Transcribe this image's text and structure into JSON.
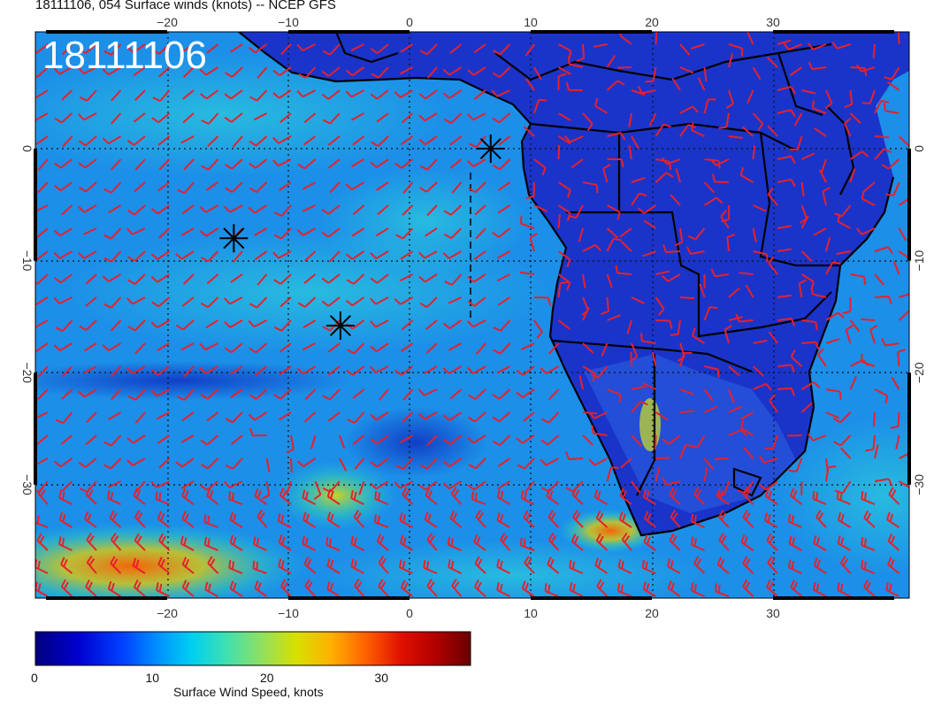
{
  "title": "18111106, 054 Surface winds (knots) -- NCEP GFS",
  "stamp": "18111106",
  "map": {
    "lon_range": [
      -31,
      41
    ],
    "lat_range": [
      -40,
      10
    ],
    "lon_ticks": [
      "−20",
      "−10",
      "0",
      "10",
      "20",
      "30"
    ],
    "lon_tick_values": [
      -20,
      -10,
      0,
      10,
      20,
      30
    ],
    "lat_ticks": [
      "0",
      "−10",
      "−20",
      "−30"
    ],
    "lat_tick_values": [
      0,
      -10,
      -20,
      -30
    ],
    "barb_color": "#e8202a",
    "coast_color": "#000000",
    "markers": [
      {
        "name": "asterisk-marker-1",
        "lon": -14.5,
        "lat": -8.0
      },
      {
        "name": "asterisk-marker-2",
        "lon": -5.7,
        "lat": -15.8
      },
      {
        "name": "asterisk-marker-3",
        "lon": 6.7,
        "lat": 0.0
      }
    ]
  },
  "colorbar": {
    "label": "Surface Wind Speed, knots",
    "ticks": [
      "0",
      "10",
      "20",
      "30"
    ],
    "tick_values": [
      0,
      10,
      20,
      30
    ],
    "max": 38,
    "colors": [
      "#00007f",
      "#0000d0",
      "#0040ff",
      "#0080ff",
      "#00c0ff",
      "#20e0e0",
      "#40e0a0",
      "#a0e040",
      "#e0e000",
      "#ffa000",
      "#ff4000",
      "#c00000",
      "#7f0000"
    ]
  }
}
